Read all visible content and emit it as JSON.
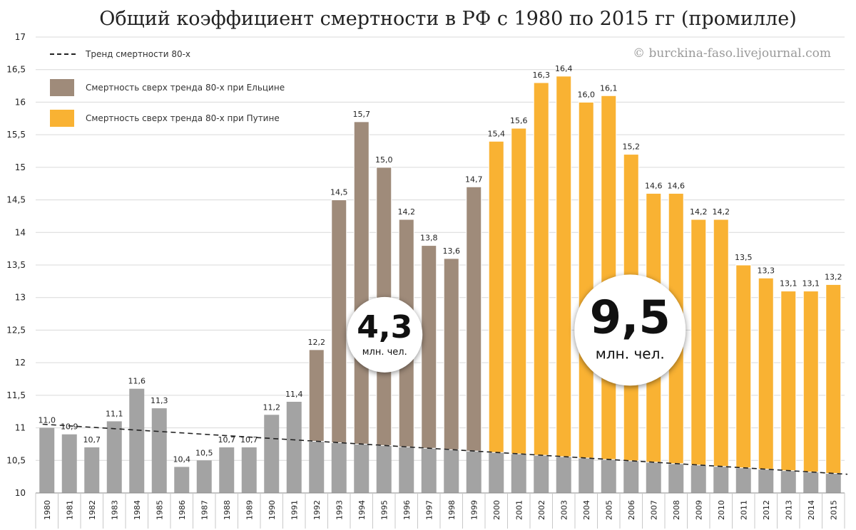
{
  "chart_data": {
    "type": "bar",
    "title": "Общий коэффициент смертности в РФ с 1980 по 2015 гг (промилле)",
    "watermark": "© burckina-faso.livejournal.com",
    "categories": [
      "1980",
      "1981",
      "1982",
      "1983",
      "1984",
      "1985",
      "1986",
      "1987",
      "1988",
      "1989",
      "1990",
      "1991",
      "1992",
      "1993",
      "1994",
      "1995",
      "1996",
      "1997",
      "1998",
      "1999",
      "2000",
      "2001",
      "2002",
      "2003",
      "2004",
      "2005",
      "2006",
      "2007",
      "2008",
      "2009",
      "2010",
      "2011",
      "2012",
      "2013",
      "2014",
      "2015"
    ],
    "values": [
      11.0,
      10.9,
      10.7,
      11.1,
      11.6,
      11.3,
      10.4,
      10.5,
      10.7,
      10.7,
      11.2,
      11.4,
      12.2,
      14.5,
      15.7,
      15.0,
      14.2,
      13.8,
      13.6,
      14.7,
      15.4,
      15.6,
      16.3,
      16.4,
      16.0,
      16.1,
      15.2,
      14.6,
      14.6,
      14.2,
      14.2,
      13.5,
      13.3,
      13.1,
      13.1,
      13.2
    ],
    "value_labels": [
      "11,0",
      "10,9",
      "10,7",
      "11,1",
      "11,6",
      "11,3",
      "10,4",
      "10,5",
      "10,7",
      "10,7",
      "11,2",
      "11,4",
      "12,2",
      "14,5",
      "15,7",
      "15,0",
      "14,2",
      "13,8",
      "13,6",
      "14,7",
      "15,4",
      "15,6",
      "16,3",
      "16,4",
      "16,0",
      "16,1",
      "15,2",
      "14,6",
      "14,6",
      "14,2",
      "14,2",
      "13,5",
      "13,3",
      "13,1",
      "13,1",
      "13,2"
    ],
    "trend": {
      "start_year": "1980",
      "start_value": 11.05,
      "end_year": "2015",
      "end_value": 10.3
    },
    "yticks": [
      "10",
      "10,5",
      "11",
      "11,5",
      "12",
      "12,5",
      "13",
      "13,5",
      "14",
      "14,5",
      "15",
      "15,5",
      "16",
      "16,5",
      "17"
    ],
    "ylim": [
      10,
      17
    ],
    "grid": true,
    "legend_position": "top-left",
    "legend": [
      {
        "label": "Тренд смертности 80-х",
        "kind": "dashed-line",
        "color": "#222222"
      },
      {
        "label": "Смертность сверх тренда 80-х при Ельцине",
        "kind": "box",
        "color": "#9f8b7a"
      },
      {
        "label": "Смертность сверх тренда 80-х при Путине",
        "kind": "box",
        "color": "#f9b233"
      }
    ],
    "colors": {
      "base": "#a3a3a3",
      "yeltsin": "#9f8b7a",
      "putin": "#f9b233",
      "grid": "#d9d9d9",
      "trend": "#222222"
    },
    "periods": {
      "yeltsin_from": "1992",
      "yeltsin_to": "1999",
      "putin_from": "2000",
      "putin_to": "2015"
    },
    "annotations": [
      {
        "value": "4,3",
        "unit": "млн. чел.",
        "anchor_year": "1995",
        "anchor_value": 12.43
      },
      {
        "value": "9,5",
        "unit": "млн. чел.",
        "anchor_year": "2005",
        "anchor_value": 12.5
      }
    ]
  }
}
